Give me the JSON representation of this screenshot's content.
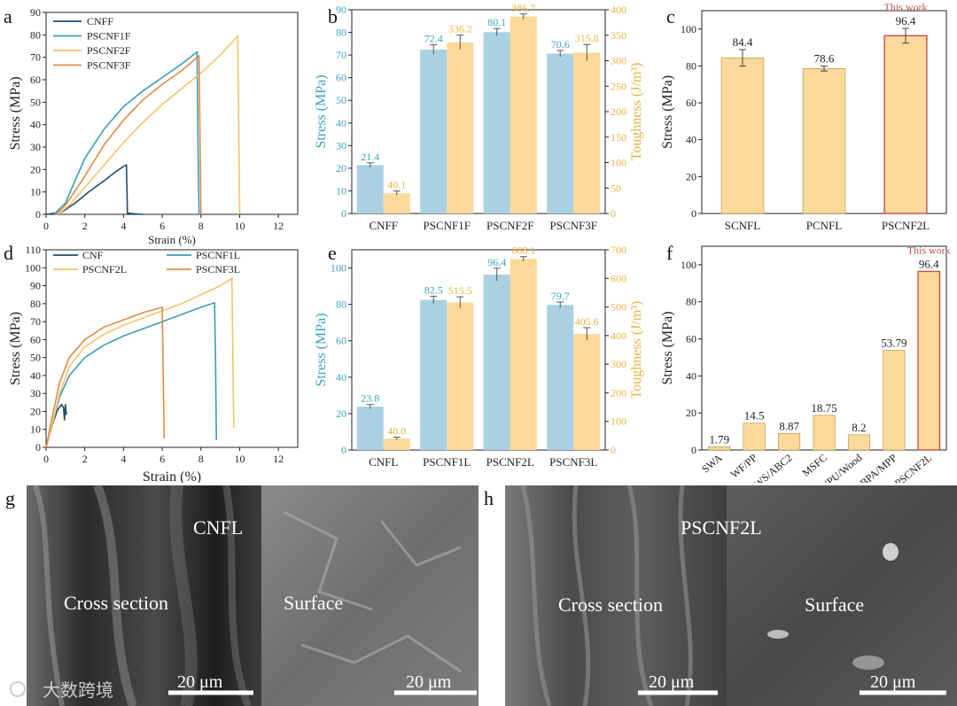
{
  "colors": {
    "cnf": "#1f4e6b",
    "p1": "#3a9dba",
    "p2": "#f5c36b",
    "p3": "#e08a45",
    "stress_bar": "#a9d1e3",
    "tough_bar": "#fbd99a",
    "stress_axis": "#3aa3c4",
    "tough_axis": "#e8b340",
    "highlight": "#c0504d"
  },
  "chart_data": [
    {
      "panel": "a",
      "type": "line",
      "xlabel": "Strain (%)",
      "ylabel": "Stress (MPa)",
      "xlim": [
        0,
        13
      ],
      "ylim": [
        0,
        90
      ],
      "xticks": [
        0,
        2,
        4,
        6,
        8,
        10,
        12
      ],
      "yticks": [
        0,
        10,
        20,
        30,
        40,
        50,
        60,
        70,
        80,
        90
      ],
      "series": [
        {
          "name": "CNFF",
          "color_key": "cnf",
          "x": [
            0,
            0.8,
            1.5,
            2.2,
            3.0,
            3.6,
            4.0,
            4.15,
            4.2,
            5.0
          ],
          "y": [
            0,
            1,
            5,
            10,
            15,
            19,
            21.4,
            22,
            0.5,
            0
          ]
        },
        {
          "name": "PSCNF1F",
          "color_key": "p1",
          "x": [
            0.4,
            1.0,
            1.5,
            2.0,
            3.0,
            4.0,
            5.0,
            6.0,
            7.0,
            7.8,
            7.85,
            7.9
          ],
          "y": [
            0,
            5,
            15,
            25,
            38,
            48,
            55,
            61,
            67,
            72.4,
            30,
            0
          ]
        },
        {
          "name": "PSCNF2F",
          "color_key": "p2",
          "x": [
            0.6,
            1.2,
            2.0,
            3.0,
            4.0,
            5.0,
            6.0,
            7.0,
            8.0,
            9.0,
            9.9,
            9.95,
            10.0
          ],
          "y": [
            0,
            4,
            12,
            22,
            32,
            41,
            49,
            56,
            63,
            71,
            79.5,
            40,
            0
          ]
        },
        {
          "name": "PSCNF3F",
          "color_key": "p3",
          "x": [
            0.5,
            1.0,
            2.0,
            3.0,
            4.0,
            5.0,
            6.0,
            7.0,
            7.9,
            7.95,
            8.0
          ],
          "y": [
            0,
            4,
            17,
            31,
            42,
            51,
            58,
            64,
            70.6,
            35,
            0
          ]
        }
      ]
    },
    {
      "panel": "b",
      "type": "bar",
      "categories": [
        "CNFF",
        "PSCNF1F",
        "PSCNF2F",
        "PSCNF3F"
      ],
      "ylabel": "Stress (MPa)",
      "y2label": "Toughness (J/m³)",
      "ylim": [
        0,
        90
      ],
      "y2lim": [
        0,
        400
      ],
      "yticks": [
        0,
        10,
        20,
        30,
        40,
        50,
        60,
        70,
        80,
        90
      ],
      "y2ticks": [
        0,
        50,
        100,
        150,
        200,
        250,
        300,
        350,
        400
      ],
      "series": [
        {
          "axis": "left",
          "values": [
            21.4,
            72.4,
            80.1,
            70.6
          ],
          "labels": [
            "21.4",
            "72.4",
            "80.1",
            "70.6"
          ],
          "err": [
            1.0,
            2.2,
            1.6,
            1.4
          ]
        },
        {
          "axis": "right",
          "values": [
            40.1,
            336.2,
            386.7,
            315.8
          ],
          "labels": [
            "40.1",
            "336.2",
            "386.7",
            "315.8"
          ],
          "err": [
            4,
            14,
            5,
            16
          ]
        }
      ]
    },
    {
      "panel": "c",
      "type": "bar",
      "categories": [
        "SCNFL",
        "PCNFL",
        "PSCNF2L"
      ],
      "ylabel": "Stress (MPa)",
      "ylim": [
        0,
        110
      ],
      "yticks": [
        0,
        20,
        40,
        60,
        80,
        100
      ],
      "values": [
        84.4,
        78.6,
        96.4
      ],
      "labels": [
        "84.4",
        "78.6",
        "96.4"
      ],
      "err": [
        4.5,
        1.3,
        4.0
      ],
      "highlight_index": 2,
      "annotation": "This work"
    },
    {
      "panel": "d",
      "type": "line",
      "xlabel": "Strain (%)",
      "ylabel": "Stress (MPa)",
      "xlim": [
        0,
        13
      ],
      "ylim": [
        0,
        110
      ],
      "xticks": [
        0,
        2,
        4,
        6,
        8,
        10,
        12
      ],
      "yticks": [
        0,
        10,
        20,
        30,
        40,
        50,
        60,
        70,
        80,
        90,
        100,
        110
      ],
      "series": [
        {
          "name": "CNF",
          "color_key": "cnf",
          "x": [
            0,
            0.2,
            0.4,
            0.6,
            0.8,
            0.9,
            0.95,
            1.0,
            1.05
          ],
          "y": [
            0,
            8,
            15,
            21,
            23.8,
            22,
            15,
            24,
            18
          ]
        },
        {
          "name": "PSCNF1L",
          "color_key": "p1",
          "x": [
            0,
            0.3,
            0.7,
            1.2,
            2.0,
            3.0,
            4.0,
            5.0,
            6.0,
            7.0,
            8.0,
            8.7,
            8.75,
            8.8
          ],
          "y": [
            0,
            12,
            28,
            40,
            50,
            57,
            62,
            66,
            70,
            74,
            78,
            80.5,
            50,
            4
          ]
        },
        {
          "name": "PSCNF2L",
          "color_key": "p2",
          "x": [
            0,
            0.3,
            0.7,
            1.2,
            2.0,
            3.0,
            4.0,
            5.0,
            6.0,
            7.0,
            8.0,
            9.0,
            9.6,
            9.65,
            9.7
          ],
          "y": [
            0,
            12,
            30,
            45,
            56,
            63,
            68,
            72,
            76,
            80,
            85,
            90,
            94,
            50,
            11
          ]
        },
        {
          "name": "PSCNF3L",
          "color_key": "p3",
          "x": [
            0,
            0.3,
            0.7,
            1.2,
            2.0,
            3.0,
            4.0,
            5.0,
            6.0,
            6.05,
            6.1
          ],
          "y": [
            0,
            16,
            36,
            50,
            60,
            67,
            71,
            75,
            78,
            40,
            5
          ]
        }
      ]
    },
    {
      "panel": "e",
      "type": "bar",
      "categories": [
        "CNFL",
        "PSCNF1L",
        "PSCNF2L",
        "PSCNF3L"
      ],
      "ylabel": "Stress (MPa)",
      "y2label": "Toughness (J/m³)",
      "ylim": [
        0,
        110
      ],
      "y2lim": [
        0,
        700
      ],
      "yticks": [
        0,
        20,
        40,
        60,
        80,
        100
      ],
      "y2ticks": [
        0,
        100,
        200,
        300,
        400,
        500,
        600,
        700
      ],
      "series": [
        {
          "axis": "left",
          "values": [
            23.8,
            82.5,
            96.4,
            79.7
          ],
          "labels": [
            "23.8",
            "82.5",
            "96.4",
            "79.7"
          ],
          "err": [
            1.2,
            2.0,
            3.5,
            1.6
          ]
        },
        {
          "axis": "right",
          "values": [
            40.0,
            515.5,
            668.1,
            405.6
          ],
          "labels": [
            "40.0",
            "515.5",
            "668.1",
            "405.6"
          ],
          "err": [
            5,
            20,
            8,
            22
          ]
        }
      ]
    },
    {
      "panel": "f",
      "type": "bar",
      "categories": [
        "SWA",
        "WF/PP",
        "GWS/ABC2",
        "MSFC",
        "WPU/Wood",
        "BPA/MPP",
        "PSCNF2L"
      ],
      "ylabel": "Stress (MPa)",
      "ylim": [
        0,
        110
      ],
      "yticks": [
        0,
        20,
        40,
        60,
        80,
        100
      ],
      "values": [
        1.79,
        14.5,
        8.87,
        18.75,
        8.2,
        53.79,
        96.4
      ],
      "labels": [
        "1.79",
        "14.5",
        "8.87",
        "18.75",
        "8.2",
        "53.79",
        "96.4"
      ],
      "highlight_index": 6,
      "annotation": "This work"
    }
  ],
  "sem": {
    "g": {
      "label": "CNFL",
      "cross": "Cross section",
      "surface": "Surface",
      "scale_left": "20 μm",
      "scale_right": "20 μm"
    },
    "h": {
      "label": "PSCNF2L",
      "cross": "Cross section",
      "surface": "Surface",
      "scale_left": "20 μm",
      "scale_right": "20 μm"
    }
  },
  "panel_letters": [
    "a",
    "b",
    "c",
    "d",
    "e",
    "f",
    "g",
    "h"
  ],
  "watermark": "大数跨境"
}
